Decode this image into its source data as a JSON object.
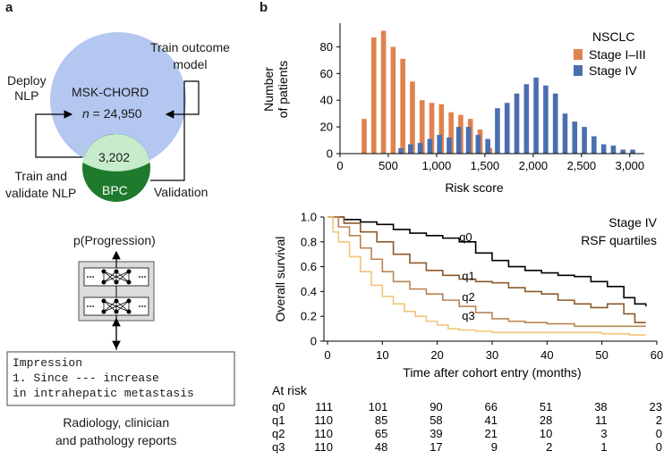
{
  "panel_a": {
    "label": "a",
    "deploy_nlp": "Deploy\nNLP",
    "train_outcome_model": "Train outcome\nmodel",
    "cohort_name": "MSK-CHORD",
    "cohort_n_prefix": "n",
    "cohort_n_suffix": " = 24,950",
    "overlap_count": "3,202",
    "bpc": "BPC",
    "train_validate_nlp": "Train and\nvalidate NLP",
    "validation": "Validation",
    "p_progression": "p(Progression)",
    "nn_dots": "···",
    "report_lines": [
      "Impression",
      "1. Since --- increase",
      "in intrahepatic metastasis"
    ],
    "report_caption": "Radiology, clinician\nand pathology reports",
    "colors": {
      "cohort": "#b3c7f0",
      "overlap": "#c7eccb",
      "bpc": "#1e7a2d",
      "nn_box": "#dcdcdc"
    }
  },
  "panel_b": {
    "label": "b",
    "chart_data": [
      {
        "type": "bar",
        "title": "NSCLC",
        "xlabel": "Risk score",
        "ylabel": "Number\nof patients",
        "xlim": [
          0,
          3150
        ],
        "ylim": [
          0,
          95
        ],
        "xticks": [
          0,
          500,
          1000,
          1500,
          2000,
          2500,
          3000
        ],
        "xtick_labels": [
          "0",
          "500",
          "1,000",
          "1,500",
          "2,000",
          "2,500",
          "3,000"
        ],
        "yticks": [
          0,
          20,
          40,
          60,
          80
        ],
        "legend_position": "top-right",
        "series": [
          {
            "name": "Stage I–III",
            "color": "#e0824e",
            "x": [
              250,
              350,
              450,
              550,
              650,
              750,
              850,
              950,
              1050,
              1150,
              1250,
              1350,
              1450,
              1550
            ],
            "values": [
              26,
              87,
              92,
              80,
              71,
              54,
              40,
              38,
              37,
              31,
              29,
              26,
              18,
              4
            ]
          },
          {
            "name": "Stage IV",
            "color": "#4a6faf",
            "x": [
              630,
              730,
              830,
              930,
              1030,
              1130,
              1230,
              1330,
              1430,
              1530,
              1630,
              1730,
              1830,
              1930,
              2030,
              2130,
              2230,
              2330,
              2430,
              2530,
              2630,
              2730,
              2830,
              2930,
              3030
            ],
            "values": [
              4,
              7,
              8,
              11,
              14,
              12,
              20,
              20,
              14,
              11,
              34,
              38,
              45,
              52,
              57,
              51,
              45,
              30,
              24,
              20,
              13,
              7,
              6,
              3,
              3
            ]
          }
        ]
      },
      {
        "type": "line",
        "title": "Stage IV\nRSF quartiles",
        "xlabel": "Time after cohort entry (months)",
        "ylabel": "Overall survival",
        "xlim": [
          0,
          60
        ],
        "ylim": [
          0,
          1.0
        ],
        "xticks": [
          0,
          10,
          20,
          30,
          40,
          50,
          60
        ],
        "yticks": [
          0,
          0.2,
          0.4,
          0.6,
          0.8,
          1.0
        ],
        "ytick_labels": [
          "0",
          "0.2",
          "0.4",
          "0.6",
          "0.8",
          "1.0"
        ],
        "series": [
          {
            "name": "q0",
            "color": "#000000",
            "x": [
              0,
              3,
              6,
              9,
              12,
              15,
              18,
              21,
              24,
              27,
              30,
              33,
              36,
              39,
              42,
              45,
              48,
              51,
              54,
              56,
              58
            ],
            "values": [
              1.0,
              0.98,
              0.96,
              0.94,
              0.9,
              0.87,
              0.85,
              0.83,
              0.8,
              0.71,
              0.65,
              0.6,
              0.57,
              0.55,
              0.53,
              0.52,
              0.48,
              0.44,
              0.35,
              0.3,
              0.28
            ]
          },
          {
            "name": "q1",
            "color": "#8c5a2b",
            "x": [
              0,
              3,
              6,
              9,
              12,
              15,
              18,
              21,
              24,
              27,
              30,
              33,
              36,
              39,
              42,
              45,
              48,
              51,
              54,
              56,
              58
            ],
            "values": [
              1.0,
              0.95,
              0.88,
              0.8,
              0.7,
              0.63,
              0.57,
              0.53,
              0.5,
              0.48,
              0.47,
              0.43,
              0.4,
              0.38,
              0.33,
              0.3,
              0.27,
              0.3,
              0.22,
              0.15,
              0.15
            ]
          },
          {
            "name": "q2",
            "color": "#b98353",
            "x": [
              0,
              2,
              4,
              6,
              8,
              10,
              12,
              15,
              18,
              21,
              24,
              27,
              30,
              33,
              36,
              40,
              45,
              50,
              55,
              58
            ],
            "values": [
              1.0,
              0.92,
              0.85,
              0.75,
              0.66,
              0.56,
              0.48,
              0.42,
              0.38,
              0.33,
              0.28,
              0.23,
              0.18,
              0.16,
              0.15,
              0.14,
              0.12,
              0.12,
              0.12,
              0.12
            ]
          },
          {
            "name": "q3",
            "color": "#f2c577",
            "x": [
              0,
              1,
              2,
              4,
              6,
              8,
              10,
              12,
              14,
              16,
              18,
              20,
              22,
              24,
              27,
              30,
              35,
              40,
              45,
              50,
              55,
              58
            ],
            "values": [
              1.0,
              0.88,
              0.8,
              0.68,
              0.56,
              0.45,
              0.36,
              0.3,
              0.24,
              0.2,
              0.16,
              0.13,
              0.1,
              0.09,
              0.08,
              0.07,
              0.07,
              0.07,
              0.07,
              0.06,
              0.05,
              0.05
            ]
          }
        ],
        "at_risk": {
          "title": "At risk",
          "rows": [
            {
              "label": "q0",
              "values": [
                "111",
                "101",
                "90",
                "66",
                "51",
                "38",
                "23"
              ]
            },
            {
              "label": "q1",
              "values": [
                "110",
                "85",
                "58",
                "41",
                "28",
                "11",
                "2"
              ]
            },
            {
              "label": "q2",
              "values": [
                "110",
                "65",
                "39",
                "21",
                "10",
                "3",
                "0"
              ]
            },
            {
              "label": "q3",
              "values": [
                "110",
                "48",
                "17",
                "9",
                "2",
                "1",
                "0"
              ]
            }
          ]
        }
      }
    ]
  }
}
